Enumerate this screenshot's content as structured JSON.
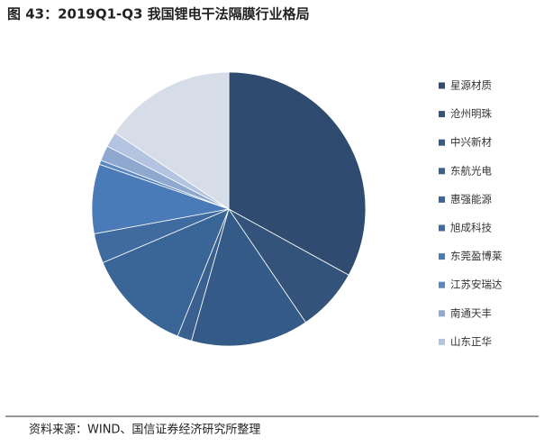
{
  "chart_data": {
    "type": "pie",
    "title": "图 43：2019Q1-Q3 我国锂电干法隔膜行业格局",
    "source": "资料来源：WIND、国信证券经济研究所整理",
    "categories": [
      "星源材质",
      "沧州明珠",
      "中兴新材",
      "东航光电",
      "惠强能源",
      "旭成科技",
      "东莞盈博莱",
      "江苏安瑞达",
      "南通天丰",
      "山东正华",
      null
    ],
    "values": [
      33,
      7.5,
      13.9,
      1.7,
      12.5,
      3.5,
      8.2,
      0.5,
      1.8,
      1.8,
      15.6
    ],
    "colors": [
      "#2f4b6f",
      "#33537a",
      "#345a88",
      "#3a6090",
      "#3a6597",
      "#3f6ba0",
      "#4a7bb8",
      "#5a87c0",
      "#8ea8d0",
      "#b4c4e0",
      "#d6dde9"
    ]
  }
}
